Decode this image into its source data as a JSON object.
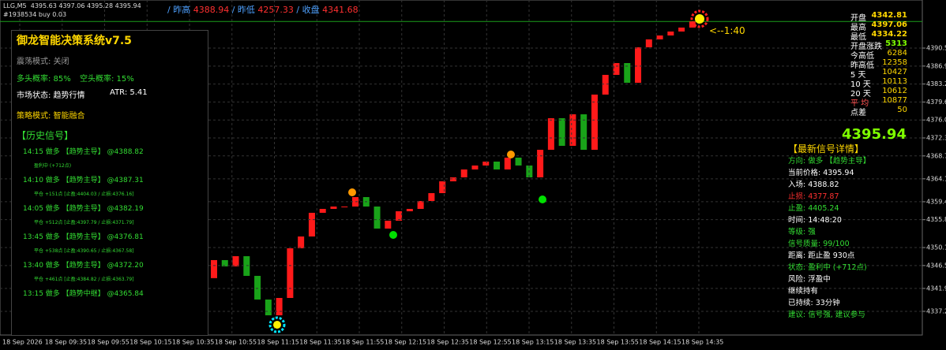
{
  "top": {
    "symbol": "LLG,M5",
    "ohlc": "4395.63 4397.06 4395.28 4395.94",
    "account": "#1938534 buy 0.03",
    "prev_high_label": "/ 昨高",
    "prev_high": "4388.94",
    "prev_low_label": "/ 昨低",
    "prev_low": "4257.33",
    "close_label": "/ 收盘",
    "close": "4341.68"
  },
  "panel": {
    "title": "御龙智能决策系统v7.5",
    "mode": "震荡模式: 关闭",
    "long_prob": "多头概率: 85%",
    "short_prob": "空头概率: 15%",
    "market_state": "市场状态: 趋势行情",
    "atr": "ATR: 5.41",
    "strategy": "策略模式: 智能融合",
    "history_title": "【历史信号】",
    "signals": [
      {
        "head": "14:15 做多 【趋势主导】 @4388.82",
        "detail": "盈利中 (+712点)"
      },
      {
        "head": "14:10 做多 【趋势主导】 @4387.31",
        "detail": "平仓 +151点 [止盈:4404.03 / 止损:4376.16]"
      },
      {
        "head": "14:05 做多 【趋势主导】 @4382.19",
        "detail": "平仓 +512点 [止盈:4397.79 / 止损:4371.79]"
      },
      {
        "head": "13:45 做多 【趋势主导】 @4376.81",
        "detail": "平仓 +538点 [止盈:4390.65 / 止损:4367.58]"
      },
      {
        "head": "13:40 做多 【趋势主导】 @4372.20",
        "detail": "平仓 +461点 [止盈:4384.82 / 止损:4363.79]"
      },
      {
        "head": "13:15 做多 【趋势中继】 @4365.84"
      }
    ]
  },
  "stats": [
    {
      "label": "开盘",
      "value": "4342.81"
    },
    {
      "label": "最高",
      "value": "4397.06"
    },
    {
      "label": "最低",
      "value": "4334.22"
    },
    {
      "label": "开盘涨跌",
      "value": "5313"
    },
    {
      "label": "今高低",
      "value": "6284"
    },
    {
      "label": "昨高低",
      "value": "12358"
    },
    {
      "label": "5 天",
      "value": "10427"
    },
    {
      "label": "10 天",
      "value": "10113"
    },
    {
      "label": "20 天",
      "value": "10612"
    },
    {
      "label": "平 均",
      "value": "10877"
    },
    {
      "label": "点差",
      "value": "50"
    }
  ],
  "big_price": "4395.94",
  "detail": {
    "title": "【最新信号详情】",
    "lines": [
      "方向: 做多 【趋势主导】",
      "当前价格: 4395.94",
      "入场: 4388.82",
      "止损: 4377.87",
      "止盈: 4405.24",
      "时间: 14:48:20",
      "等级: 强",
      "信号质量: 99/100",
      "距离: 距止盈 930点",
      "状态: 盈利中 (+712点)",
      "风险: 浮盈中",
      "继续持有",
      "已持续: 33分钟",
      "建议: 信号强, 建议参与"
    ]
  },
  "annotation": "<--1:40",
  "chart": {
    "type": "candlestick",
    "up_color": "#ff1a1a",
    "down_color": "#19a319",
    "ylim": [
      4332.49,
      4400.28
    ],
    "yticks": [
      4390.55,
      4386.91,
      4383.28,
      4379.64,
      {
        "value": 4376.0,
        "label": "4376.00"
      },
      4372.37,
      4368.73,
      {
        "value": 4364.1,
        "label": "4364.10"
      },
      4359.46,
      4355.83,
      4350.19,
      4346.55,
      4341.92,
      4337.28
    ],
    "x": [
      "18 Sep 2026",
      "18 Sep 09:35",
      "18 Sep 09:55",
      "18 Sep 10:15",
      "18 Sep 10:35",
      "18 Sep 10:55",
      "18 Sep 11:15",
      "18 Sep 11:35",
      "18 Sep 11:55",
      "18 Sep 12:15",
      "18 Sep 12:35",
      "18 Sep 12:55",
      "18 Sep 13:15",
      "18 Sep 13:35",
      "18 Sep 13:55",
      "18 Sep 14:15",
      "18 Sep 14:35"
    ],
    "opens": [
      4344.0,
      4347.65,
      4346.37,
      4348.44,
      4344.46,
      4339.67,
      4336.48,
      4339.99,
      4350.04,
      4352.43,
      4357.22,
      4358.01,
      4358.49,
      4358.49,
      4360.4,
      4358.49,
      4354.03,
      4355.62,
      4357.53,
      4358.01,
      4359.61,
      4361.2,
      4363.59,
      4364.39,
      4365.99,
      4366.79,
      4367.58,
      4365.99,
      4368.38,
      4366.79,
      4364.39,
      4369.97,
      4376.36,
      4370.77,
      4377.15,
      4369.97,
      4381.14,
      4385.13,
      4387.52,
      4383.53,
      4390.71,
      4392.31,
      4393.1,
      4393.9,
      4394.7
    ],
    "closes": [
      4347.65,
      4346.37,
      4348.44,
      4344.46,
      4339.67,
      4336.48,
      4339.99,
      4350.04,
      4352.43,
      4357.22,
      4358.01,
      4358.49,
      4358.49,
      4360.4,
      4358.49,
      4354.03,
      4355.62,
      4357.53,
      4358.01,
      4359.61,
      4361.2,
      4363.59,
      4364.39,
      4365.99,
      4366.79,
      4367.58,
      4365.99,
      4368.38,
      4366.79,
      4364.39,
      4369.97,
      4376.36,
      4370.77,
      4377.15,
      4369.97,
      4381.14,
      4385.13,
      4387.52,
      4383.53,
      4390.71,
      4392.31,
      4393.1,
      4393.9,
      4394.7,
      4395.94
    ]
  }
}
